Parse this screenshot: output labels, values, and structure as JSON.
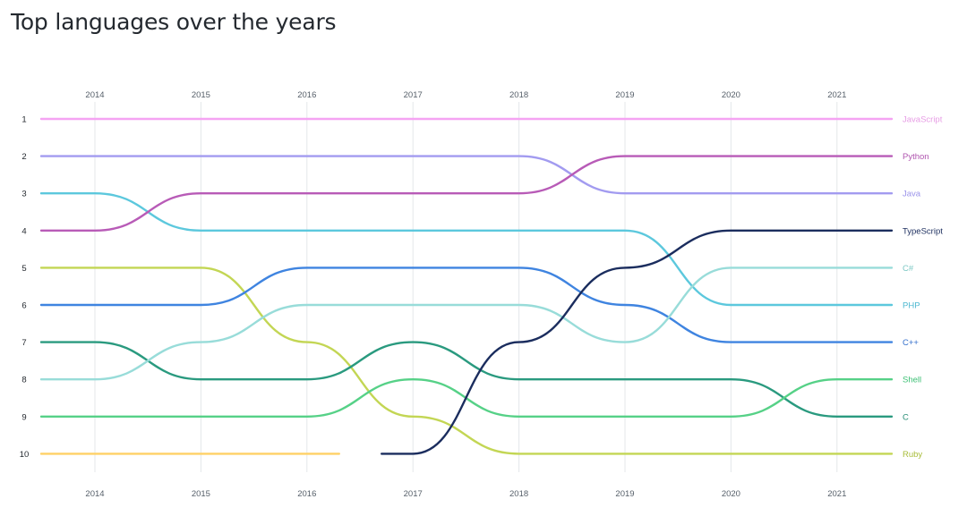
{
  "page": {
    "title": "Top languages over the years"
  },
  "chart_data": {
    "type": "line",
    "subtype": "bump",
    "title": "Top languages over the years",
    "xlabel": "",
    "ylabel": "",
    "x": [
      "2014",
      "2015",
      "2016",
      "2017",
      "2018",
      "2019",
      "2020",
      "2021"
    ],
    "y_ticks": [
      1,
      2,
      3,
      4,
      5,
      6,
      7,
      8,
      9,
      10
    ],
    "ylim": [
      1,
      10
    ],
    "y_inverted": true,
    "grid": "vertical",
    "legend": "end-labels-right",
    "series": [
      {
        "name": "JavaScript",
        "color": "#f5a3f3",
        "values": [
          1,
          1,
          1,
          1,
          1,
          1,
          1,
          1
        ]
      },
      {
        "name": "Python",
        "color": "#b85bb7",
        "values": [
          4,
          3,
          3,
          3,
          3,
          2,
          2,
          2
        ]
      },
      {
        "name": "Java",
        "color": "#a29bf0",
        "values": [
          2,
          2,
          2,
          2,
          2,
          3,
          3,
          3
        ]
      },
      {
        "name": "TypeScript",
        "color": "#1b2d5e",
        "values": [
          null,
          null,
          null,
          10,
          7,
          5,
          4,
          4
        ]
      },
      {
        "name": "C#",
        "color": "#98dcd9",
        "values": [
          8,
          7,
          6,
          6,
          6,
          7,
          5,
          5
        ]
      },
      {
        "name": "PHP",
        "color": "#5cc8dd",
        "values": [
          3,
          4,
          4,
          4,
          4,
          4,
          6,
          6
        ]
      },
      {
        "name": "C++",
        "color": "#3f84e0",
        "values": [
          6,
          6,
          5,
          5,
          5,
          6,
          7,
          7
        ]
      },
      {
        "name": "Shell",
        "color": "#56d187",
        "values": [
          9,
          9,
          9,
          8,
          9,
          9,
          9,
          8
        ]
      },
      {
        "name": "C",
        "color": "#2a9a7f",
        "values": [
          7,
          8,
          8,
          7,
          8,
          8,
          8,
          9
        ]
      },
      {
        "name": "Ruby",
        "color": "#c3d654",
        "values": [
          5,
          5,
          7,
          9,
          10,
          10,
          10,
          10
        ]
      },
      {
        "name": "",
        "color": "#ffd166",
        "values": [
          10,
          10,
          10,
          null,
          null,
          null,
          null,
          null
        ]
      }
    ],
    "label_colors": {
      "JavaScript": "#e79de5",
      "Python": "#b157b0",
      "Java": "#9b93ea",
      "TypeScript": "#1b2d5e",
      "C#": "#7cc8c4",
      "PHP": "#4fb9d1",
      "C++": "#3570cc",
      "Shell": "#3fc176",
      "C": "#2a8f77",
      "Ruby": "#a9bd3a"
    }
  }
}
